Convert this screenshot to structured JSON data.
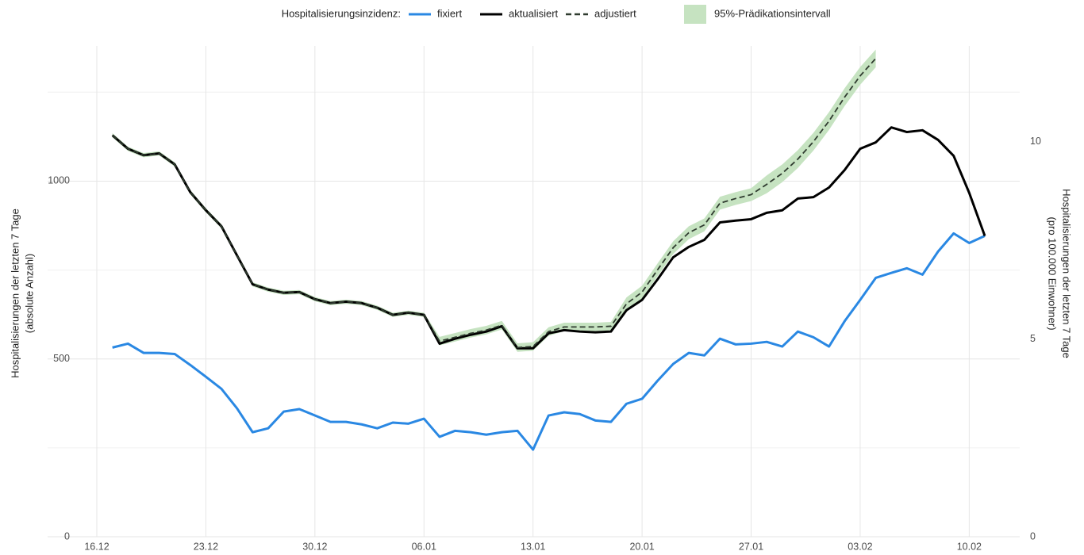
{
  "chart_data": {
    "type": "line",
    "legend_title": "Hospitalisierungsinzidenz:",
    "y_label": [
      "Hospitalisierungen der letzten 7 Tage",
      "(absolute Anzahl)"
    ],
    "y2_label": [
      "Hospitalisierungen der letzten 7 Tage",
      "(pro 100.000 Einwohner)"
    ],
    "categories": [
      "16.12",
      null,
      null,
      null,
      null,
      null,
      null,
      "23.12",
      null,
      null,
      null,
      null,
      null,
      null,
      "30.12",
      null,
      null,
      null,
      null,
      null,
      null,
      "06.01",
      null,
      null,
      null,
      null,
      null,
      null,
      "13.01",
      null,
      null,
      null,
      null,
      null,
      null,
      "20.01",
      null,
      null,
      null,
      null,
      null,
      null,
      "27.01",
      null,
      null,
      null,
      null,
      null,
      null,
      "03.02",
      null,
      null,
      null,
      null,
      null,
      null,
      "10.02",
      null
    ],
    "ylim": [
      0,
      1380
    ],
    "yticks": [
      0,
      500,
      1000
    ],
    "yminorticks": [
      250,
      750,
      1250
    ],
    "y2lim": [
      0,
      12.42
    ],
    "y2ticks": [
      0,
      5,
      10
    ],
    "grid": true,
    "series": [
      {
        "name": "fixiert",
        "color": "#2a88e3",
        "dash": "none",
        "values": [
          null,
          532,
          543,
          517,
          517,
          514,
          483,
          450,
          416,
          361,
          294,
          305,
          352,
          359,
          341,
          323,
          323,
          316,
          305,
          321,
          318,
          332,
          281,
          298,
          294,
          287,
          294,
          298,
          245,
          341,
          350,
          345,
          327,
          323,
          374,
          388,
          439,
          486,
          517,
          510,
          557,
          541,
          543,
          548,
          535,
          577,
          561,
          535,
          606,
          666,
          728,
          742,
          755,
          737,
          802,
          853,
          826,
          846
        ]
      },
      {
        "name": "aktualisiert",
        "color": "#000000",
        "dash": "none",
        "values": [
          null,
          1129,
          1091,
          1073,
          1078,
          1047,
          969,
          918,
          873,
          791,
          710,
          695,
          686,
          688,
          668,
          657,
          661,
          657,
          644,
          624,
          630,
          624,
          543,
          557,
          568,
          577,
          592,
          530,
          530,
          572,
          581,
          577,
          575,
          577,
          637,
          666,
          724,
          786,
          815,
          835,
          884,
          889,
          893,
          911,
          918,
          951,
          955,
          982,
          1031,
          1091,
          1109,
          1151,
          1138,
          1143,
          1116,
          1071,
          967,
          846
        ]
      },
      {
        "name": "adjustiert",
        "color": "#2f3b2f",
        "dash": "7 4",
        "values": [
          null,
          1129,
          1091,
          1073,
          1078,
          1047,
          969,
          918,
          873,
          791,
          710,
          695,
          686,
          688,
          668,
          657,
          661,
          657,
          644,
          624,
          630,
          624,
          550,
          561,
          572,
          581,
          595,
          532,
          535,
          577,
          590,
          590,
          590,
          592,
          655,
          688,
          751,
          813,
          855,
          877,
          938,
          951,
          962,
          991,
          1022,
          1062,
          1111,
          1169,
          1236,
          1296,
          1345,
          null,
          null,
          null,
          null,
          null,
          null,
          null
        ]
      }
    ],
    "interval": {
      "name": "95%-Prädikationsintervall",
      "color": "#c6e3c1",
      "lower": [
        null,
        1123,
        1085,
        1067,
        1072,
        1041,
        963,
        912,
        867,
        785,
        704,
        689,
        680,
        682,
        662,
        651,
        655,
        651,
        638,
        618,
        624,
        618,
        538,
        549,
        560,
        569,
        583,
        520,
        523,
        565,
        578,
        578,
        578,
        580,
        637,
        670,
        733,
        795,
        837,
        859,
        920,
        933,
        944,
        966,
        997,
        1037,
        1086,
        1144,
        1211,
        1271,
        1320,
        null,
        null,
        null,
        null,
        null,
        null,
        null
      ],
      "upper": [
        null,
        1135,
        1097,
        1079,
        1084,
        1053,
        975,
        924,
        879,
        797,
        716,
        701,
        692,
        694,
        674,
        663,
        667,
        663,
        650,
        630,
        636,
        630,
        562,
        573,
        584,
        593,
        607,
        544,
        547,
        589,
        602,
        602,
        602,
        604,
        673,
        706,
        769,
        831,
        873,
        895,
        956,
        969,
        980,
        1016,
        1047,
        1087,
        1136,
        1194,
        1261,
        1321,
        1370,
        null,
        null,
        null,
        null,
        null,
        null,
        null
      ]
    }
  }
}
